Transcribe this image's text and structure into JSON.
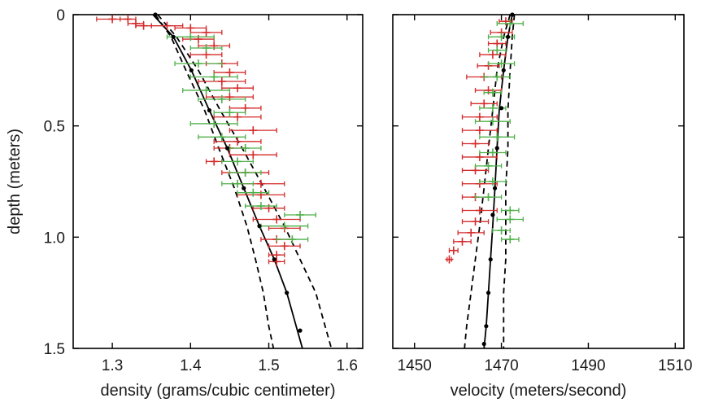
{
  "chart_data": [
    {
      "type": "scatter",
      "ylabel": "depth (meters)",
      "xlabel": "density (grams/cubic centimeter)",
      "xlim": [
        1.25,
        1.62
      ],
      "ylim": [
        0,
        1.5
      ],
      "y_inverted": true,
      "xticks": [
        "1.3",
        "1.4",
        "1.5",
        "1.6"
      ],
      "xtick_values": [
        1.3,
        1.4,
        1.5,
        1.6
      ],
      "yticks": [
        "0",
        "0.5",
        "1.0",
        "1.5"
      ],
      "ytick_values": [
        0,
        0.5,
        1.0,
        1.5
      ],
      "colors": {
        "red": "#d42a2a",
        "green": "#4fb04a",
        "black": "#000000"
      },
      "series": [
        {
          "color": "red",
          "marker": "plus-errorbar",
          "points": [
            {
              "x": 1.3,
              "y": 0.02,
              "err": 0.02
            },
            {
              "x": 1.32,
              "y": 0.02,
              "err": 0.01
            },
            {
              "x": 1.33,
              "y": 0.04,
              "err": 0.01
            },
            {
              "x": 1.34,
              "y": 0.05,
              "err": 0.01
            },
            {
              "x": 1.37,
              "y": 0.05,
              "err": 0.02
            },
            {
              "x": 1.4,
              "y": 0.06,
              "err": 0.02
            },
            {
              "x": 1.42,
              "y": 0.08,
              "err": 0.02
            },
            {
              "x": 1.41,
              "y": 0.11,
              "err": 0.02
            },
            {
              "x": 1.43,
              "y": 0.14,
              "err": 0.02
            },
            {
              "x": 1.42,
              "y": 0.18,
              "err": 0.02
            },
            {
              "x": 1.44,
              "y": 0.22,
              "err": 0.02
            },
            {
              "x": 1.45,
              "y": 0.26,
              "err": 0.02
            },
            {
              "x": 1.44,
              "y": 0.3,
              "err": 0.03
            },
            {
              "x": 1.46,
              "y": 0.33,
              "err": 0.02
            },
            {
              "x": 1.45,
              "y": 0.37,
              "err": 0.03
            },
            {
              "x": 1.47,
              "y": 0.42,
              "err": 0.02
            },
            {
              "x": 1.46,
              "y": 0.46,
              "err": 0.03
            },
            {
              "x": 1.48,
              "y": 0.52,
              "err": 0.03
            },
            {
              "x": 1.46,
              "y": 0.57,
              "err": 0.03
            },
            {
              "x": 1.45,
              "y": 0.6,
              "err": 0.02
            },
            {
              "x": 1.48,
              "y": 0.63,
              "err": 0.03
            },
            {
              "x": 1.43,
              "y": 0.66,
              "err": 0.01
            },
            {
              "x": 1.47,
              "y": 0.71,
              "err": 0.03
            },
            {
              "x": 1.49,
              "y": 0.76,
              "err": 0.03
            },
            {
              "x": 1.49,
              "y": 0.81,
              "err": 0.03
            },
            {
              "x": 1.5,
              "y": 0.87,
              "err": 0.02
            },
            {
              "x": 1.51,
              "y": 0.92,
              "err": 0.03
            },
            {
              "x": 1.52,
              "y": 0.96,
              "err": 0.02
            },
            {
              "x": 1.51,
              "y": 1.01,
              "err": 0.02
            },
            {
              "x": 1.52,
              "y": 1.04,
              "err": 0.02
            },
            {
              "x": 1.51,
              "y": 1.08,
              "err": 0.01
            },
            {
              "x": 1.51,
              "y": 1.11,
              "err": 0.01
            }
          ]
        },
        {
          "color": "green",
          "marker": "plus-errorbar",
          "points": [
            {
              "x": 1.4,
              "y": 0.1,
              "err": 0.03
            },
            {
              "x": 1.42,
              "y": 0.15,
              "err": 0.02
            },
            {
              "x": 1.41,
              "y": 0.22,
              "err": 0.03
            },
            {
              "x": 1.43,
              "y": 0.28,
              "err": 0.03
            },
            {
              "x": 1.42,
              "y": 0.34,
              "err": 0.03
            },
            {
              "x": 1.44,
              "y": 0.38,
              "err": 0.03
            },
            {
              "x": 1.45,
              "y": 0.44,
              "err": 0.02
            },
            {
              "x": 1.43,
              "y": 0.49,
              "err": 0.03
            },
            {
              "x": 1.44,
              "y": 0.55,
              "err": 0.03
            },
            {
              "x": 1.47,
              "y": 0.6,
              "err": 0.02
            },
            {
              "x": 1.46,
              "y": 0.66,
              "err": 0.02
            },
            {
              "x": 1.47,
              "y": 0.71,
              "err": 0.02
            },
            {
              "x": 1.46,
              "y": 0.76,
              "err": 0.02
            },
            {
              "x": 1.48,
              "y": 0.8,
              "err": 0.02
            },
            {
              "x": 1.49,
              "y": 0.86,
              "err": 0.02
            },
            {
              "x": 1.54,
              "y": 0.9,
              "err": 0.02
            },
            {
              "x": 1.52,
              "y": 0.95,
              "err": 0.03
            },
            {
              "x": 1.53,
              "y": 1.01,
              "err": 0.02
            }
          ]
        }
      ],
      "lines": [
        {
          "style": "solid",
          "color": "black",
          "x": [
            1.352,
            1.378,
            1.401,
            1.424,
            1.447,
            1.468,
            1.488,
            1.507,
            1.523,
            1.535,
            1.543
          ],
          "y": [
            0.0,
            0.1,
            0.25,
            0.43,
            0.6,
            0.78,
            0.95,
            1.1,
            1.25,
            1.4,
            1.5
          ]
        },
        {
          "style": "dashed",
          "color": "black",
          "x": [
            1.355,
            1.375,
            1.394,
            1.418,
            1.436,
            1.456,
            1.472,
            1.483,
            1.493,
            1.5,
            1.506
          ],
          "y": [
            0.0,
            0.1,
            0.25,
            0.43,
            0.6,
            0.78,
            0.95,
            1.1,
            1.25,
            1.4,
            1.5
          ]
        },
        {
          "style": "dashed",
          "color": "black",
          "x": [
            1.358,
            1.382,
            1.41,
            1.438,
            1.466,
            1.494,
            1.52,
            1.54,
            1.56,
            1.572,
            1.58
          ],
          "y": [
            0.0,
            0.1,
            0.25,
            0.43,
            0.6,
            0.78,
            0.95,
            1.1,
            1.25,
            1.4,
            1.5
          ]
        }
      ],
      "dots": {
        "x": [
          1.355,
          1.378,
          1.401,
          1.424,
          1.447,
          1.468,
          1.488,
          1.507,
          1.523,
          1.54
        ],
        "y": [
          0.0,
          0.1,
          0.25,
          0.43,
          0.6,
          0.78,
          0.95,
          1.1,
          1.25,
          1.42
        ]
      }
    },
    {
      "type": "scatter",
      "xlabel": "velocity (meters/second)",
      "xlim": [
        1445,
        1512
      ],
      "ylim": [
        0,
        1.5
      ],
      "y_inverted": true,
      "xticks": [
        "1450",
        "1470",
        "1490",
        "1510"
      ],
      "xtick_values": [
        1450,
        1470,
        1490,
        1510
      ],
      "colors": {
        "red": "#d42a2a",
        "green": "#4fb04a",
        "black": "#000000"
      },
      "series": [
        {
          "color": "red",
          "marker": "plus-errorbar",
          "points": [
            {
              "x": 1471,
              "y": 0.03,
              "err": 1.5
            },
            {
              "x": 1470,
              "y": 0.08,
              "err": 2.5
            },
            {
              "x": 1469,
              "y": 0.13,
              "err": 2
            },
            {
              "x": 1468,
              "y": 0.18,
              "err": 3
            },
            {
              "x": 1467,
              "y": 0.23,
              "err": 2.5
            },
            {
              "x": 1466,
              "y": 0.28,
              "err": 4
            },
            {
              "x": 1467,
              "y": 0.34,
              "err": 3
            },
            {
              "x": 1466,
              "y": 0.4,
              "err": 3
            },
            {
              "x": 1465,
              "y": 0.46,
              "err": 4
            },
            {
              "x": 1465,
              "y": 0.52,
              "err": 4
            },
            {
              "x": 1464,
              "y": 0.58,
              "err": 3
            },
            {
              "x": 1465,
              "y": 0.64,
              "err": 4
            },
            {
              "x": 1464,
              "y": 0.7,
              "err": 3
            },
            {
              "x": 1465,
              "y": 0.76,
              "err": 4
            },
            {
              "x": 1464,
              "y": 0.82,
              "err": 3
            },
            {
              "x": 1465,
              "y": 0.88,
              "err": 4
            },
            {
              "x": 1464,
              "y": 0.93,
              "err": 3
            },
            {
              "x": 1463,
              "y": 0.98,
              "err": 3
            },
            {
              "x": 1461,
              "y": 1.02,
              "err": 2
            },
            {
              "x": 1459,
              "y": 1.06,
              "err": 1
            },
            {
              "x": 1458,
              "y": 1.1,
              "err": 0.5
            }
          ]
        },
        {
          "color": "green",
          "marker": "plus-errorbar",
          "points": [
            {
              "x": 1472,
              "y": 0.04,
              "err": 3
            },
            {
              "x": 1470,
              "y": 0.1,
              "err": 3
            },
            {
              "x": 1469,
              "y": 0.16,
              "err": 2
            },
            {
              "x": 1470,
              "y": 0.22,
              "err": 3
            },
            {
              "x": 1469,
              "y": 0.28,
              "err": 3
            },
            {
              "x": 1468,
              "y": 0.35,
              "err": 2
            },
            {
              "x": 1468,
              "y": 0.42,
              "err": 3
            },
            {
              "x": 1468,
              "y": 0.48,
              "err": 4
            },
            {
              "x": 1469,
              "y": 0.55,
              "err": 4
            },
            {
              "x": 1468,
              "y": 0.62,
              "err": 3
            },
            {
              "x": 1467,
              "y": 0.68,
              "err": 3
            },
            {
              "x": 1468,
              "y": 0.75,
              "err": 3
            },
            {
              "x": 1467,
              "y": 0.82,
              "err": 3
            },
            {
              "x": 1472,
              "y": 0.88,
              "err": 2
            },
            {
              "x": 1472,
              "y": 0.92,
              "err": 3
            },
            {
              "x": 1470,
              "y": 0.97,
              "err": 2
            },
            {
              "x": 1472,
              "y": 1.01,
              "err": 2
            }
          ]
        }
      ],
      "lines": [
        {
          "style": "solid",
          "color": "black",
          "x": [
            1472.5,
            1471.5,
            1470.5,
            1469.5,
            1469,
            1468.5,
            1468,
            1467.5,
            1467,
            1466.5,
            1466
          ],
          "y": [
            0.0,
            0.1,
            0.25,
            0.43,
            0.6,
            0.78,
            0.95,
            1.1,
            1.25,
            1.4,
            1.5
          ]
        },
        {
          "style": "dashed",
          "color": "black",
          "x": [
            1473,
            1472.5,
            1472,
            1471.5,
            1471.5,
            1471,
            1471,
            1471,
            1470.5,
            1470.5,
            1470.5
          ],
          "y": [
            0.0,
            0.1,
            0.25,
            0.43,
            0.6,
            0.78,
            0.95,
            1.1,
            1.25,
            1.4,
            1.5
          ]
        },
        {
          "style": "dashed",
          "color": "black",
          "x": [
            1472,
            1470.5,
            1469,
            1468,
            1467,
            1466,
            1465,
            1464,
            1463,
            1462,
            1461.5
          ],
          "y": [
            0.0,
            0.1,
            0.25,
            0.43,
            0.6,
            0.78,
            0.95,
            1.1,
            1.25,
            1.4,
            1.5
          ]
        }
      ],
      "dots": {
        "x": [
          1472.5,
          1471.5,
          1470.5,
          1470,
          1469,
          1468.5,
          1468,
          1467.5,
          1467,
          1466.5,
          1466
        ],
        "y": [
          0.0,
          0.1,
          0.25,
          0.42,
          0.6,
          0.78,
          0.9,
          1.1,
          1.25,
          1.4,
          1.48
        ]
      }
    }
  ]
}
